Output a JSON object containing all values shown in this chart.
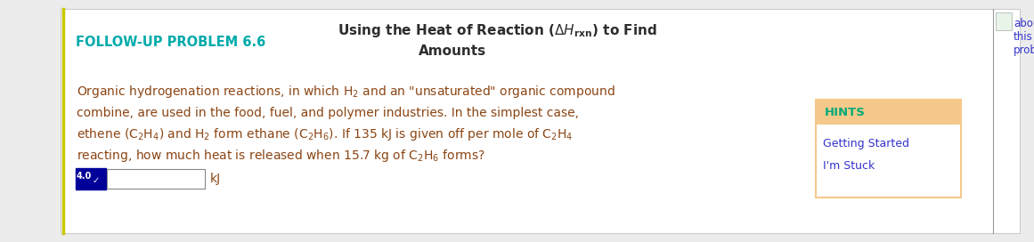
{
  "bg_color": "#ececec",
  "panel_bg": "#ffffff",
  "left_border_color": "#c8c800",
  "title_label": "FOLLOW-UP PROBLEM 6.6",
  "title_color": "#00aaaa",
  "center_title_color": "#2d2d2d",
  "about_color": "#3333cc",
  "body_text_color": "#8B4513",
  "hints_header_bg": "#f5c98a",
  "hints_text_color": "#00aa77",
  "hints_label": "HINTS",
  "hints_links_color": "#3333cc",
  "hints_link1": "Getting Started",
  "hints_link2": "I'm Stuck",
  "sig_fig_box_color": "#000099",
  "sig_fig_text": "4.0",
  "kJ_color": "#8B4513",
  "right_border_color": "#999999"
}
